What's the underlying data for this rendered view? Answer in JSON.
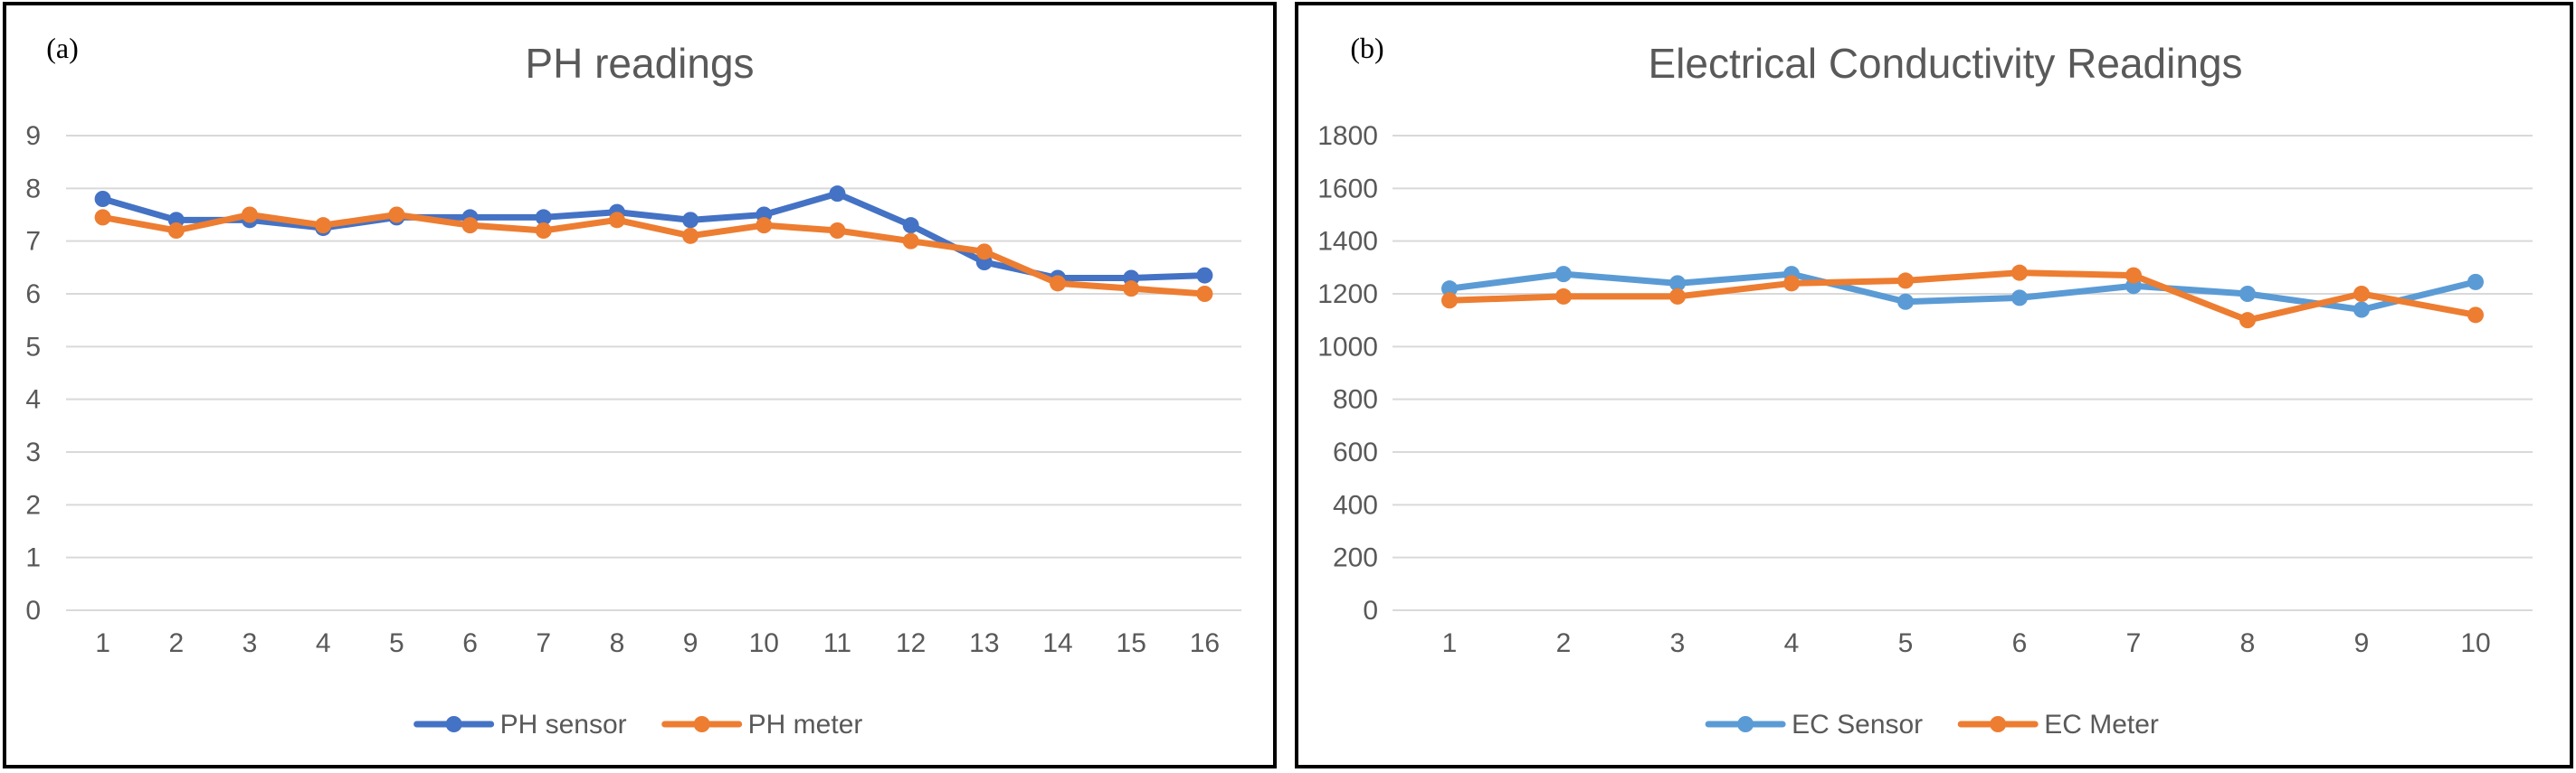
{
  "chart_data": [
    {
      "panel_label": "(a)",
      "type": "line",
      "title": "PH readings",
      "xlabel": "",
      "ylabel": "",
      "ylim": [
        0,
        9
      ],
      "yticks": [
        "0",
        "1",
        "2",
        "3",
        "4",
        "5",
        "6",
        "7",
        "8",
        "9"
      ],
      "categories": [
        "1",
        "2",
        "3",
        "4",
        "5",
        "6",
        "7",
        "8",
        "9",
        "10",
        "11",
        "12",
        "13",
        "14",
        "15",
        "16"
      ],
      "grid": true,
      "legend": "bottom",
      "series": [
        {
          "name": "PH sensor",
          "color": "#4472c4",
          "values": [
            7.8,
            7.4,
            7.4,
            7.25,
            7.45,
            7.45,
            7.45,
            7.55,
            7.4,
            7.5,
            7.9,
            7.3,
            6.6,
            6.3,
            6.3,
            6.35
          ]
        },
        {
          "name": "PH meter",
          "color": "#ed7d31",
          "values": [
            7.45,
            7.2,
            7.5,
            7.3,
            7.5,
            7.3,
            7.2,
            7.4,
            7.1,
            7.3,
            7.2,
            7.0,
            6.8,
            6.2,
            6.1,
            6.0
          ]
        }
      ]
    },
    {
      "panel_label": "(b)",
      "type": "line",
      "title": "Electrical Conductivity Readings",
      "xlabel": "",
      "ylabel": "",
      "ylim": [
        0,
        1800
      ],
      "yticks": [
        "0",
        "200",
        "400",
        "600",
        "800",
        "1000",
        "1200",
        "1400",
        "1600",
        "1800"
      ],
      "categories": [
        "1",
        "2",
        "3",
        "4",
        "5",
        "6",
        "7",
        "8",
        "9",
        "10"
      ],
      "grid": true,
      "legend": "bottom",
      "series": [
        {
          "name": "EC Sensor",
          "color": "#5b9bd5",
          "values": [
            1220,
            1275,
            1240,
            1275,
            1170,
            1185,
            1230,
            1200,
            1140,
            1245
          ]
        },
        {
          "name": "EC Meter",
          "color": "#ed7d31",
          "values": [
            1175,
            1190,
            1190,
            1240,
            1250,
            1280,
            1270,
            1100,
            1200,
            1120
          ]
        }
      ]
    }
  ]
}
